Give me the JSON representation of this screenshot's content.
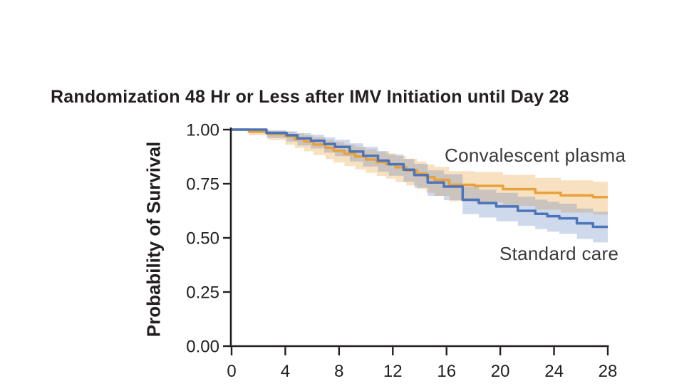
{
  "chart_data": {
    "type": "line",
    "subtype": "kaplan-meier-step-with-confidence-bands",
    "title": "Randomization 48 Hr or Less after IMV Initiation until Day 28",
    "xlabel": "",
    "ylabel": "Probability of Survival",
    "xlim": [
      0,
      28
    ],
    "ylim": [
      0.0,
      1.0
    ],
    "grid": false,
    "legend_position": "inline-annotations",
    "axis_color": "#231f20",
    "x_ticks": [
      {
        "label": "0",
        "value": 0
      },
      {
        "label": "4",
        "value": 4
      },
      {
        "label": "8",
        "value": 8
      },
      {
        "label": "12",
        "value": 12
      },
      {
        "label": "16",
        "value": 16
      },
      {
        "label": "20",
        "value": 20
      },
      {
        "label": "24",
        "value": 24
      },
      {
        "label": "28",
        "value": 28
      }
    ],
    "y_ticks": [
      {
        "label": "1.00",
        "value": 1.0
      },
      {
        "label": "0.75",
        "value": 0.75
      },
      {
        "label": "0.50",
        "value": 0.5
      },
      {
        "label": "0.25",
        "value": 0.25
      },
      {
        "label": "0.00",
        "value": 0.0
      }
    ],
    "series": [
      {
        "name": "Convalescent plasma",
        "color": "#E8A13C",
        "band_opacity": 0.32,
        "points": [
          [
            0,
            1.0
          ],
          [
            1.3,
            0.99
          ],
          [
            2.7,
            0.98
          ],
          [
            4.0,
            0.97
          ],
          [
            4.7,
            0.956
          ],
          [
            5.4,
            0.945
          ],
          [
            6.1,
            0.931
          ],
          [
            7.0,
            0.916
          ],
          [
            7.6,
            0.902
          ],
          [
            8.4,
            0.888
          ],
          [
            9.2,
            0.876
          ],
          [
            10.0,
            0.862
          ],
          [
            10.8,
            0.85
          ],
          [
            11.5,
            0.84
          ],
          [
            12.2,
            0.826
          ],
          [
            13.0,
            0.812
          ],
          [
            13.8,
            0.797
          ],
          [
            14.5,
            0.781
          ],
          [
            15.1,
            0.768
          ],
          [
            16.2,
            0.745
          ],
          [
            18.1,
            0.74
          ],
          [
            20.2,
            0.725
          ],
          [
            22.6,
            0.708
          ],
          [
            24.5,
            0.696
          ],
          [
            26.9,
            0.688
          ],
          [
            28,
            0.688
          ]
        ],
        "band": [
          [
            0,
            1.0,
            1.0
          ],
          [
            1.3,
            0.974,
            0.998
          ],
          [
            2.7,
            0.952,
            0.994
          ],
          [
            4.0,
            0.93,
            0.99
          ],
          [
            4.7,
            0.915,
            0.983
          ],
          [
            5.4,
            0.9,
            0.975
          ],
          [
            6.1,
            0.882,
            0.965
          ],
          [
            7.0,
            0.864,
            0.953
          ],
          [
            7.6,
            0.848,
            0.943
          ],
          [
            8.4,
            0.832,
            0.931
          ],
          [
            9.2,
            0.817,
            0.921
          ],
          [
            10.0,
            0.8,
            0.909
          ],
          [
            10.8,
            0.786,
            0.899
          ],
          [
            11.5,
            0.774,
            0.89
          ],
          [
            12.2,
            0.758,
            0.878
          ],
          [
            13.0,
            0.742,
            0.866
          ],
          [
            13.8,
            0.726,
            0.853
          ],
          [
            14.5,
            0.708,
            0.839
          ],
          [
            15.1,
            0.694,
            0.828
          ],
          [
            16.2,
            0.669,
            0.808
          ],
          [
            18.1,
            0.664,
            0.804
          ],
          [
            20.2,
            0.648,
            0.791
          ],
          [
            22.6,
            0.63,
            0.777
          ],
          [
            24.5,
            0.617,
            0.766
          ],
          [
            26.9,
            0.608,
            0.759
          ],
          [
            28,
            0.608,
            0.759
          ]
        ]
      },
      {
        "name": "Standard care",
        "color": "#4C74B9",
        "band_opacity": 0.27,
        "points": [
          [
            0,
            1.0
          ],
          [
            2.6,
            0.985
          ],
          [
            4.1,
            0.974
          ],
          [
            4.9,
            0.96
          ],
          [
            5.9,
            0.949
          ],
          [
            6.9,
            0.934
          ],
          [
            7.7,
            0.92
          ],
          [
            8.8,
            0.899
          ],
          [
            9.8,
            0.879
          ],
          [
            10.9,
            0.857
          ],
          [
            11.7,
            0.84
          ],
          [
            12.8,
            0.815
          ],
          [
            13.6,
            0.79
          ],
          [
            14.6,
            0.756
          ],
          [
            15.8,
            0.737
          ],
          [
            17.2,
            0.676
          ],
          [
            18.4,
            0.661
          ],
          [
            19.7,
            0.645
          ],
          [
            21.3,
            0.625
          ],
          [
            22.6,
            0.611
          ],
          [
            23.5,
            0.6
          ],
          [
            24.4,
            0.59
          ],
          [
            25.7,
            0.567
          ],
          [
            26.9,
            0.551
          ],
          [
            28,
            0.551
          ]
        ],
        "band": [
          [
            0,
            1.0,
            1.0
          ],
          [
            2.6,
            0.962,
            0.997
          ],
          [
            4.1,
            0.945,
            0.992
          ],
          [
            4.9,
            0.927,
            0.984
          ],
          [
            5.9,
            0.913,
            0.976
          ],
          [
            6.9,
            0.894,
            0.964
          ],
          [
            7.7,
            0.877,
            0.953
          ],
          [
            8.8,
            0.853,
            0.937
          ],
          [
            9.8,
            0.83,
            0.92
          ],
          [
            10.9,
            0.806,
            0.901
          ],
          [
            11.7,
            0.787,
            0.886
          ],
          [
            12.8,
            0.759,
            0.864
          ],
          [
            13.6,
            0.731,
            0.842
          ],
          [
            14.6,
            0.694,
            0.812
          ],
          [
            15.8,
            0.674,
            0.794
          ],
          [
            17.2,
            0.61,
            0.737
          ],
          [
            18.4,
            0.594,
            0.723
          ],
          [
            19.7,
            0.577,
            0.708
          ],
          [
            21.3,
            0.556,
            0.69
          ],
          [
            22.6,
            0.541,
            0.677
          ],
          [
            23.5,
            0.529,
            0.667
          ],
          [
            24.4,
            0.519,
            0.658
          ],
          [
            25.7,
            0.495,
            0.636
          ],
          [
            26.9,
            0.479,
            0.621
          ],
          [
            28,
            0.479,
            0.621
          ]
        ]
      }
    ]
  }
}
